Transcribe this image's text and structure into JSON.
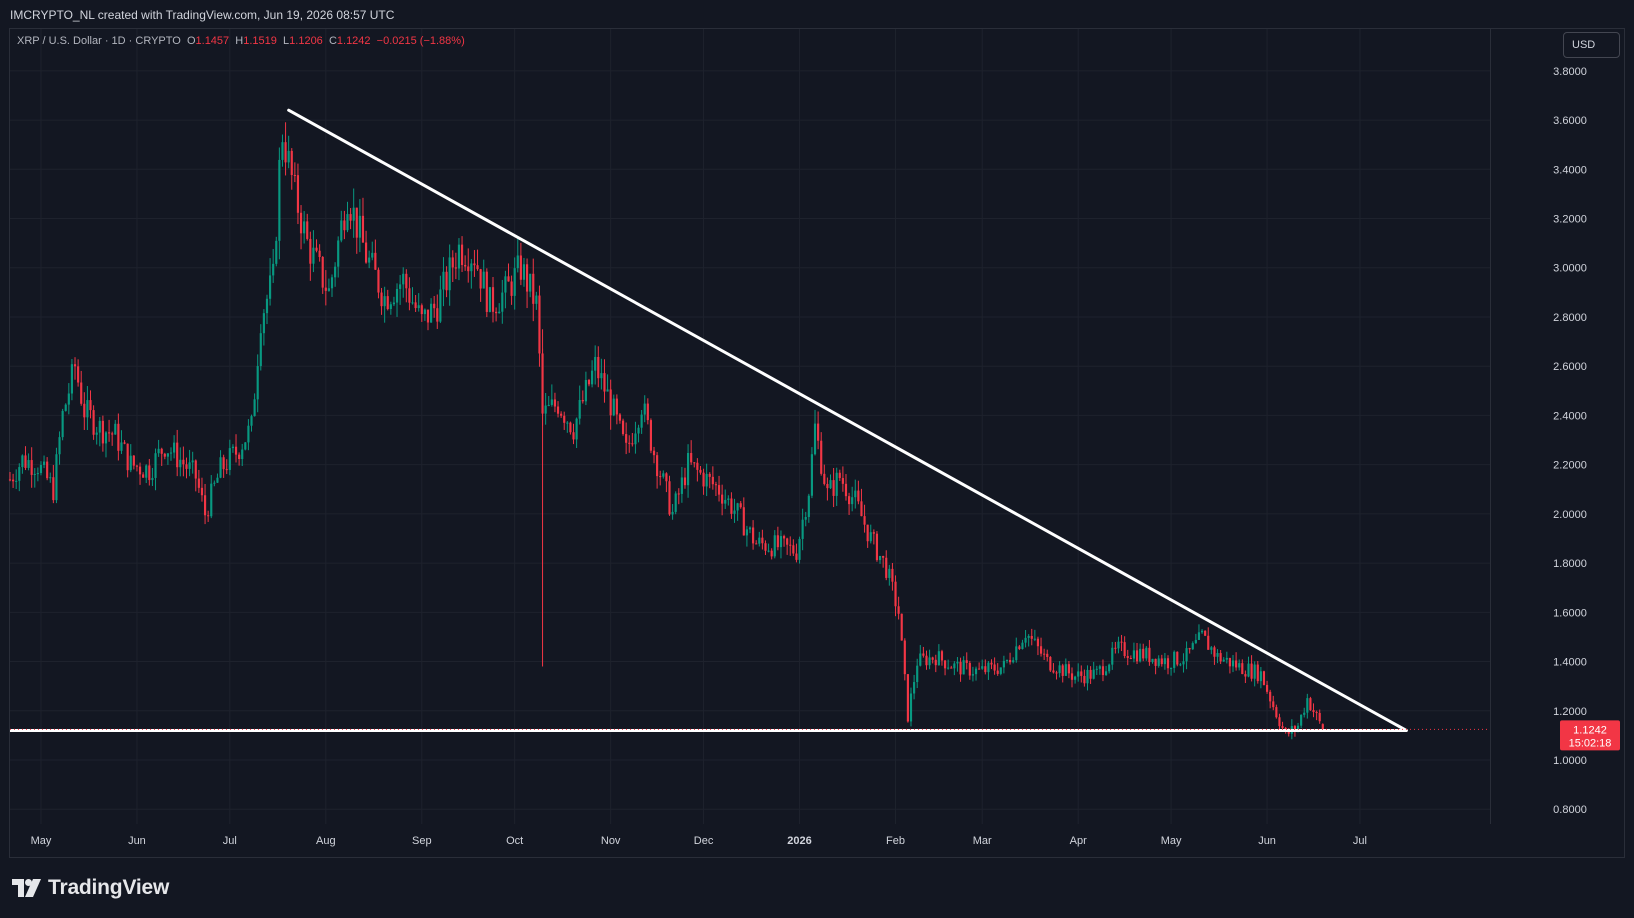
{
  "header": {
    "credit": "IMCRYPTO_NL created with TradingView.com, Jun 19, 2026 08:57 UTC"
  },
  "legend": {
    "symbol": "XRP / U.S. Dollar · 1D · CRYPTO",
    "open_label": "O",
    "open": "1.1457",
    "high_label": "H",
    "high": "1.1519",
    "low_label": "L",
    "low": "1.1206",
    "close_label": "C",
    "close": "1.1242",
    "change": "−0.0215 (−1.88%)"
  },
  "currency_button": "USD",
  "price_tag": {
    "price": "1.1242",
    "countdown": "15:02:18",
    "color": "#f23645"
  },
  "footer": {
    "brand": "TradingView"
  },
  "colors": {
    "up": "#089981",
    "down": "#f23645",
    "background": "#131722",
    "grid": "#1e222d",
    "trendline": "#ffffff"
  },
  "chart_data": {
    "type": "candlestick",
    "instrument": "XRP / U.S. Dollar",
    "interval": "1D",
    "ylim": [
      0.74,
      3.97
    ],
    "y_ticks": [
      "3.8000",
      "3.6000",
      "3.4000",
      "3.2000",
      "3.0000",
      "2.8000",
      "2.6000",
      "2.4000",
      "2.2000",
      "2.0000",
      "1.8000",
      "1.6000",
      "1.4000",
      "1.2000",
      "1.0000",
      "0.8000"
    ],
    "x_ticks": [
      "May",
      "Jun",
      "Jul",
      "Aug",
      "Sep",
      "Oct",
      "Nov",
      "Dec",
      "2026",
      "Feb",
      "Mar",
      "Apr",
      "May",
      "Jun",
      "Jul"
    ],
    "x_tick_dates": [
      "2025-05-01",
      "2025-06-01",
      "2025-07-01",
      "2025-08-01",
      "2025-09-01",
      "2025-10-01",
      "2025-11-01",
      "2025-12-01",
      "2026-01-01",
      "2026-02-01",
      "2026-03-01",
      "2026-04-01",
      "2026-05-01",
      "2026-06-01",
      "2026-07-01"
    ],
    "x_range": [
      "2025-04-21",
      "2026-08-12"
    ],
    "series": [
      {
        "name": "XRP / U.S. Dollar",
        "approx_close": [
          [
            "2025-04-21",
            2.14
          ],
          [
            "2025-04-25",
            2.22
          ],
          [
            "2025-04-30",
            2.2
          ],
          [
            "2025-05-05",
            2.1
          ],
          [
            "2025-05-08",
            2.4
          ],
          [
            "2025-05-12",
            2.6
          ],
          [
            "2025-05-15",
            2.42
          ],
          [
            "2025-05-20",
            2.35
          ],
          [
            "2025-05-25",
            2.32
          ],
          [
            "2025-05-30",
            2.2
          ],
          [
            "2025-06-05",
            2.18
          ],
          [
            "2025-06-10",
            2.28
          ],
          [
            "2025-06-15",
            2.22
          ],
          [
            "2025-06-20",
            2.15
          ],
          [
            "2025-06-23",
            2.0
          ],
          [
            "2025-06-28",
            2.18
          ],
          [
            "2025-07-03",
            2.25
          ],
          [
            "2025-07-08",
            2.35
          ],
          [
            "2025-07-11",
            2.8
          ],
          [
            "2025-07-15",
            2.95
          ],
          [
            "2025-07-17",
            3.4
          ],
          [
            "2025-07-18",
            3.55
          ],
          [
            "2025-07-22",
            3.3
          ],
          [
            "2025-07-26",
            3.1
          ],
          [
            "2025-08-02",
            2.9
          ],
          [
            "2025-08-08",
            3.3
          ],
          [
            "2025-08-14",
            3.05
          ],
          [
            "2025-08-20",
            2.88
          ],
          [
            "2025-08-26",
            2.95
          ],
          [
            "2025-09-01",
            2.78
          ],
          [
            "2025-09-06",
            2.85
          ],
          [
            "2025-09-13",
            3.08
          ],
          [
            "2025-09-18",
            3.05
          ],
          [
            "2025-09-23",
            2.85
          ],
          [
            "2025-09-28",
            2.9
          ],
          [
            "2025-10-03",
            3.0
          ],
          [
            "2025-10-08",
            2.85
          ],
          [
            "2025-10-10",
            2.4
          ],
          [
            "2025-10-15",
            2.45
          ],
          [
            "2025-10-20",
            2.35
          ],
          [
            "2025-10-27",
            2.6
          ],
          [
            "2025-11-01",
            2.45
          ],
          [
            "2025-11-06",
            2.25
          ],
          [
            "2025-11-11",
            2.45
          ],
          [
            "2025-11-15",
            2.25
          ],
          [
            "2025-11-21",
            2.0
          ],
          [
            "2025-11-26",
            2.2
          ],
          [
            "2025-12-01",
            2.15
          ],
          [
            "2025-12-06",
            2.1
          ],
          [
            "2025-12-12",
            2.0
          ],
          [
            "2025-12-18",
            1.88
          ],
          [
            "2025-12-24",
            1.87
          ],
          [
            "2025-12-31",
            1.85
          ],
          [
            "2026-01-04",
            2.1
          ],
          [
            "2026-01-06",
            2.35
          ],
          [
            "2026-01-10",
            2.08
          ],
          [
            "2026-01-14",
            2.15
          ],
          [
            "2026-01-19",
            2.05
          ],
          [
            "2026-01-24",
            1.9
          ],
          [
            "2026-01-29",
            1.78
          ],
          [
            "2026-02-02",
            1.6
          ],
          [
            "2026-02-05",
            1.18
          ],
          [
            "2026-02-08",
            1.4
          ],
          [
            "2026-02-14",
            1.42
          ],
          [
            "2026-02-20",
            1.38
          ],
          [
            "2026-02-28",
            1.36
          ],
          [
            "2026-03-08",
            1.38
          ],
          [
            "2026-03-15",
            1.52
          ],
          [
            "2026-03-22",
            1.4
          ],
          [
            "2026-03-31",
            1.34
          ],
          [
            "2026-04-07",
            1.35
          ],
          [
            "2026-04-14",
            1.45
          ],
          [
            "2026-04-22",
            1.43
          ],
          [
            "2026-04-30",
            1.4
          ],
          [
            "2026-05-06",
            1.42
          ],
          [
            "2026-05-11",
            1.5
          ],
          [
            "2026-05-16",
            1.42
          ],
          [
            "2026-05-23",
            1.38
          ],
          [
            "2026-05-30",
            1.35
          ],
          [
            "2026-06-03",
            1.22
          ],
          [
            "2026-06-07",
            1.1
          ],
          [
            "2026-06-11",
            1.14
          ],
          [
            "2026-06-14",
            1.25
          ],
          [
            "2026-06-19",
            1.1242
          ]
        ]
      }
    ],
    "annotations": [
      {
        "type": "trendline",
        "from": [
          "2025-07-20",
          3.64
        ],
        "to": [
          "2026-07-16",
          1.12
        ]
      },
      {
        "type": "horizontal_line",
        "y": 1.12
      }
    ]
  }
}
